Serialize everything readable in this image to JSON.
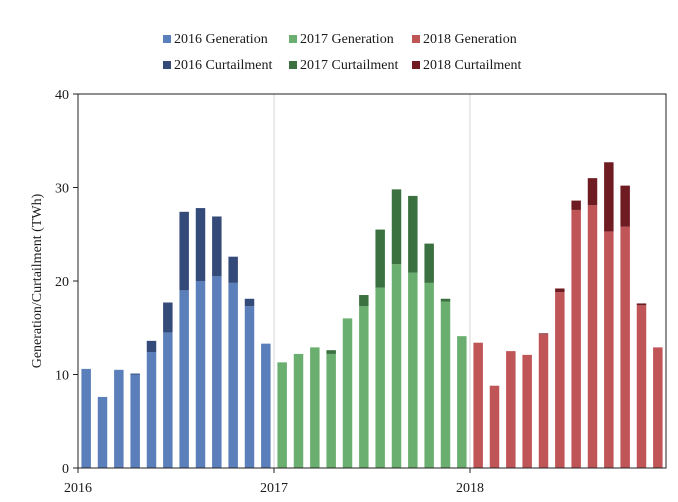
{
  "chart_data": {
    "type": "bar",
    "stacked": true,
    "title": "",
    "xlabel": "",
    "ylabel": "Generation/Curtailment (TWh)",
    "ylim": [
      0,
      40
    ],
    "yticks": [
      0,
      10,
      20,
      30,
      40
    ],
    "xtick_labels": [
      "2016",
      "2017",
      "2018"
    ],
    "grid": {
      "vertical": true,
      "horizontal": false
    },
    "legend_position": "top",
    "colors": {
      "2016 Generation": "#5b7fba",
      "2016 Curtailment": "#344a78",
      "2017 Generation": "#6aaf6f",
      "2017 Curtailment": "#3b7140",
      "2018 Generation": "#c05558",
      "2018 Curtailment": "#6e1c22"
    },
    "legend": [
      "2016 Generation",
      "2017 Generation",
      "2018 Generation",
      "2016 Curtailment",
      "2017 Curtailment",
      "2018 Curtailment"
    ],
    "categories": [
      "2016-01",
      "2016-02",
      "2016-03",
      "2016-04",
      "2016-05",
      "2016-06",
      "2016-07",
      "2016-08",
      "2016-09",
      "2016-10",
      "2016-11",
      "2016-12",
      "2017-01",
      "2017-02",
      "2017-03",
      "2017-04",
      "2017-05",
      "2017-06",
      "2017-07",
      "2017-08",
      "2017-09",
      "2017-10",
      "2017-11",
      "2017-12",
      "2018-01",
      "2018-02",
      "2018-03",
      "2018-04",
      "2018-05",
      "2018-06",
      "2018-07",
      "2018-08",
      "2018-09",
      "2018-10",
      "2018-11",
      "2018-12"
    ],
    "series": [
      {
        "year": "2016",
        "months": [
          "2016-01",
          "2016-02",
          "2016-03",
          "2016-04",
          "2016-05",
          "2016-06",
          "2016-07",
          "2016-08",
          "2016-09",
          "2016-10",
          "2016-11",
          "2016-12"
        ],
        "generation": [
          10.6,
          7.6,
          10.5,
          10.0,
          12.4,
          14.5,
          19.0,
          20.0,
          20.5,
          19.8,
          17.3,
          13.3
        ],
        "curtailment": [
          0.0,
          0.0,
          0.0,
          0.1,
          1.2,
          3.2,
          8.4,
          7.8,
          6.4,
          2.8,
          0.8,
          0.0
        ]
      },
      {
        "year": "2017",
        "months": [
          "2017-01",
          "2017-02",
          "2017-03",
          "2017-04",
          "2017-05",
          "2017-06",
          "2017-07",
          "2017-08",
          "2017-09",
          "2017-10",
          "2017-11",
          "2017-12"
        ],
        "generation": [
          11.3,
          12.2,
          12.9,
          12.2,
          16.0,
          17.3,
          19.3,
          21.8,
          20.9,
          19.8,
          17.8,
          14.1
        ],
        "curtailment": [
          0.0,
          0.0,
          0.0,
          0.4,
          0.0,
          1.2,
          6.2,
          8.0,
          8.2,
          4.2,
          0.3,
          0.0
        ]
      },
      {
        "year": "2018",
        "months": [
          "2018-01",
          "2018-02",
          "2018-03",
          "2018-04",
          "2018-05",
          "2018-06",
          "2018-07",
          "2018-08",
          "2018-09",
          "2018-10",
          "2018-11",
          "2018-12"
        ],
        "generation": [
          13.4,
          8.8,
          12.5,
          12.1,
          14.3,
          18.8,
          27.6,
          28.1,
          25.3,
          25.8,
          17.4,
          12.9
        ],
        "curtailment": [
          0.0,
          0.0,
          0.0,
          0.0,
          0.1,
          0.4,
          1.0,
          2.9,
          7.4,
          4.4,
          0.2,
          0.0
        ]
      }
    ]
  }
}
